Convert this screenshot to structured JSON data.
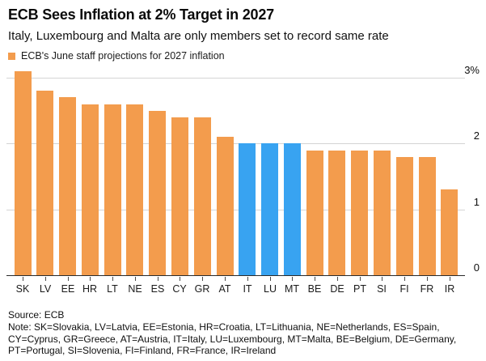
{
  "header": {
    "title": "ECB Sees Inflation at 2% Target in 2027",
    "subtitle": "Italy, Luxembourg and Malta are only members set to record same rate"
  },
  "legend": {
    "label": "ECB's June staff projections for 2027 inflation"
  },
  "chart_data": {
    "type": "bar",
    "title": "ECB Sees Inflation at 2% Target in 2027",
    "subtitle": "Italy, Luxembourg and Malta are only members set to record same rate",
    "series_name": "ECB's June staff projections for 2027 inflation",
    "categories": [
      "SK",
      "LV",
      "EE",
      "HR",
      "LT",
      "NE",
      "ES",
      "CY",
      "GR",
      "AT",
      "IT",
      "LU",
      "MT",
      "BE",
      "DE",
      "PT",
      "SI",
      "FI",
      "FR",
      "IR"
    ],
    "values": [
      3.1,
      2.8,
      2.7,
      2.6,
      2.6,
      2.6,
      2.5,
      2.4,
      2.4,
      2.1,
      2.0,
      2.0,
      2.0,
      1.9,
      1.9,
      1.9,
      1.9,
      1.8,
      1.8,
      1.3
    ],
    "unit": "%",
    "highlight_categories": [
      "IT",
      "LU",
      "MT"
    ],
    "colors": {
      "default": "#F39C4D",
      "highlight": "#38A3F1"
    },
    "yticks": [
      {
        "value": 0,
        "label": "0"
      },
      {
        "value": 1,
        "label": "1"
      },
      {
        "value": 2,
        "label": "2"
      },
      {
        "value": 3,
        "label": "3%"
      }
    ],
    "ylim": [
      0,
      3.15
    ],
    "grid": true,
    "legend_position": "top-left",
    "y_axis_side": "right"
  },
  "footer": {
    "source": "Source: ECB",
    "note": "Note: SK=Slovakia, LV=Latvia, EE=Estonia, HR=Croatia, LT=Lithuania, NE=Netherlands, ES=Spain, CY=Cyprus, GR=Greece, AT=Austria, IT=Italy, LU=Luxembourg, MT=Malta, BE=Belgium, DE=Germany, PT=Portugal, SI=Slovenia, FI=Finland, FR=France, IR=Ireland"
  }
}
